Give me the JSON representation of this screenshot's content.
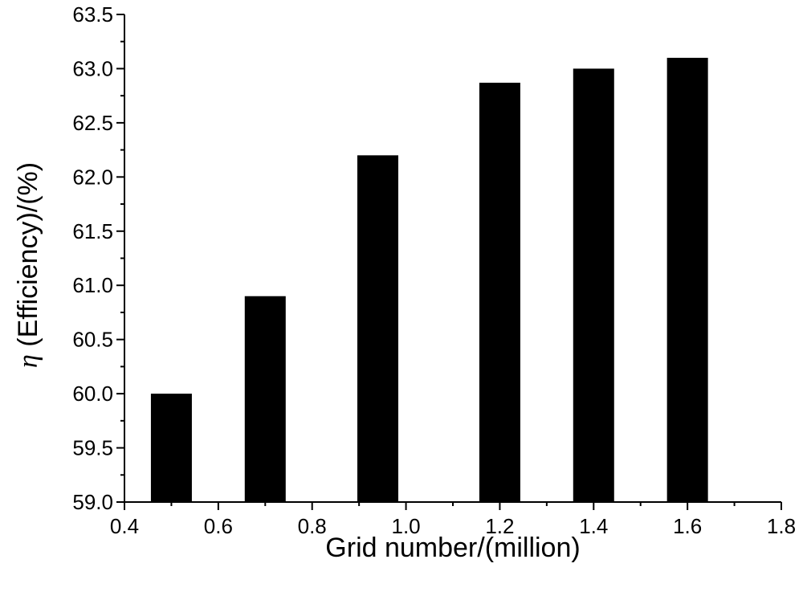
{
  "chart_data": {
    "type": "bar",
    "x": [
      0.5,
      0.7,
      0.94,
      1.2,
      1.4,
      1.6
    ],
    "values": [
      60.0,
      60.9,
      62.2,
      62.87,
      63.0,
      63.1
    ],
    "bar_color": "#000000",
    "xlabel": "Grid number/(million)",
    "ylabel_symbol": "η",
    "ylabel": " (Efficiency)/(%)",
    "xlim": [
      0.4,
      1.8
    ],
    "ylim": [
      59.0,
      63.5
    ],
    "x_ticks": [
      "0.4",
      "0.6",
      "0.8",
      "1.0",
      "1.2",
      "1.4",
      "1.6",
      "1.8"
    ],
    "y_ticks": [
      "59.0",
      "59.5",
      "60.0",
      "60.5",
      "61.0",
      "61.5",
      "62.0",
      "62.5",
      "63.0",
      "63.5"
    ],
    "grid": false,
    "legend": "none"
  }
}
